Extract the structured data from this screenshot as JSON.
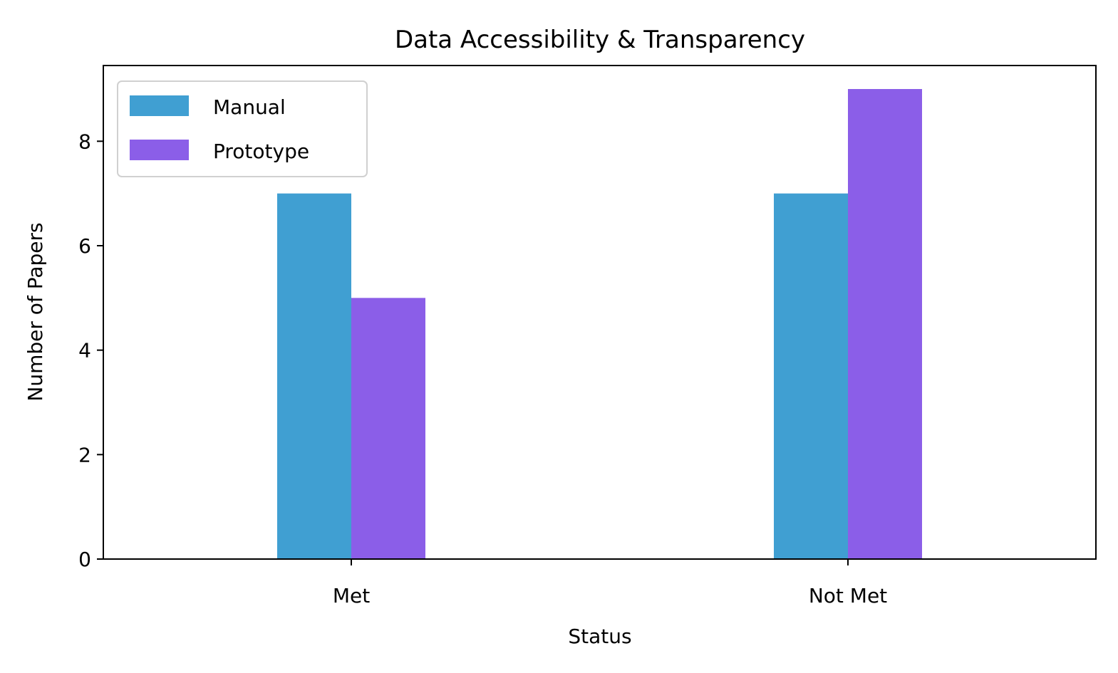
{
  "chart_data": {
    "type": "bar",
    "title": "Data Accessibility & Transparency",
    "xlabel": "Status",
    "ylabel": "Number of Papers",
    "categories": [
      "Met",
      "Not Met"
    ],
    "series": [
      {
        "name": "Manual",
        "color": "#409FD2",
        "values": [
          7,
          7
        ]
      },
      {
        "name": "Prototype",
        "color": "#8B5EE8",
        "values": [
          5,
          9
        ]
      }
    ],
    "ylim": [
      0,
      9.45
    ],
    "yticks": [
      0,
      2,
      4,
      6,
      8
    ],
    "grid": false,
    "legend_position": "top-left"
  }
}
